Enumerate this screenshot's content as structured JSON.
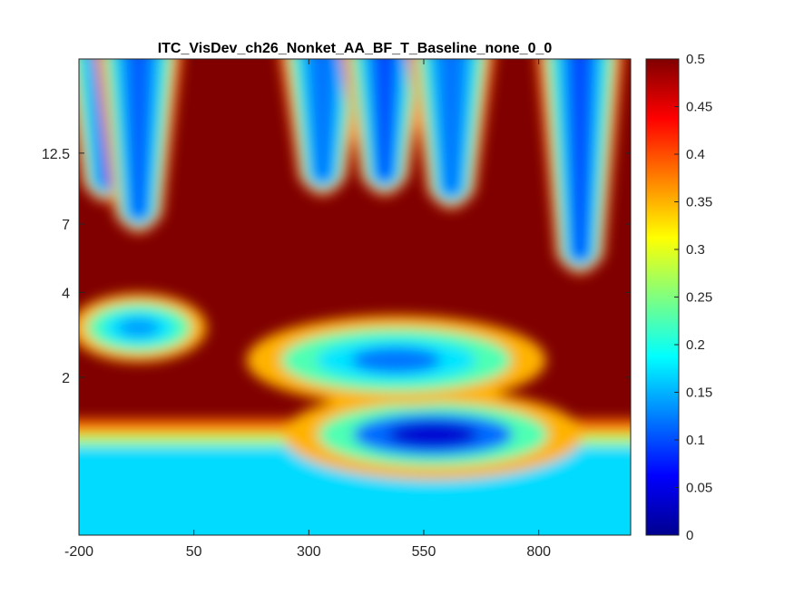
{
  "chart_data": {
    "type": "heatmap",
    "title": "ITC_VisDev_ch26_Nonket_AA_BF_T_Baseline_none_0_0",
    "xlabel": "",
    "ylabel": "",
    "colormap": "jet",
    "x_ticks": [
      "-200",
      "50",
      "300",
      "550",
      "800"
    ],
    "x_tick_values": [
      -200,
      50,
      300,
      550,
      800
    ],
    "xlim": [
      -200,
      1000
    ],
    "y_scale": "log",
    "y_ticks": [
      "2",
      "4",
      "7",
      "12.5"
    ],
    "y_tick_values": [
      2,
      4,
      7,
      12.5
    ],
    "ylim": [
      0.55,
      27
    ],
    "colorbar": {
      "range": [
        0,
        0.5
      ],
      "ticks": [
        "0",
        "0.05",
        "0.1",
        "0.15",
        "0.2",
        "0.25",
        "0.3",
        "0.35",
        "0.4",
        "0.45",
        "0.5"
      ]
    },
    "regions": [
      {
        "kind": "band",
        "y": [
          0.55,
          1.15
        ],
        "value": 0.17
      },
      {
        "kind": "blob",
        "x": 570,
        "y": 1.25,
        "value": 0.04
      },
      {
        "kind": "blob",
        "x": 490,
        "y": 2.3,
        "value": 0.12
      },
      {
        "kind": "blob",
        "x": -70,
        "y": 3.0,
        "value": 0.14
      },
      {
        "kind": "plume",
        "x": -140,
        "y": [
          9,
          27
        ],
        "value": 0.12
      },
      {
        "kind": "plume",
        "x": -70,
        "y": [
          7,
          27
        ],
        "value": 0.11
      },
      {
        "kind": "plume",
        "x": 330,
        "y": [
          9.5,
          27
        ],
        "value": 0.12
      },
      {
        "kind": "plume",
        "x": 465,
        "y": [
          9.5,
          27
        ],
        "value": 0.1
      },
      {
        "kind": "plume",
        "x": 610,
        "y": [
          8.5,
          27
        ],
        "value": 0.12
      },
      {
        "kind": "plume",
        "x": 890,
        "y": [
          5,
          27
        ],
        "value": 0.1
      },
      {
        "kind": "background",
        "value": 0.5
      }
    ]
  }
}
